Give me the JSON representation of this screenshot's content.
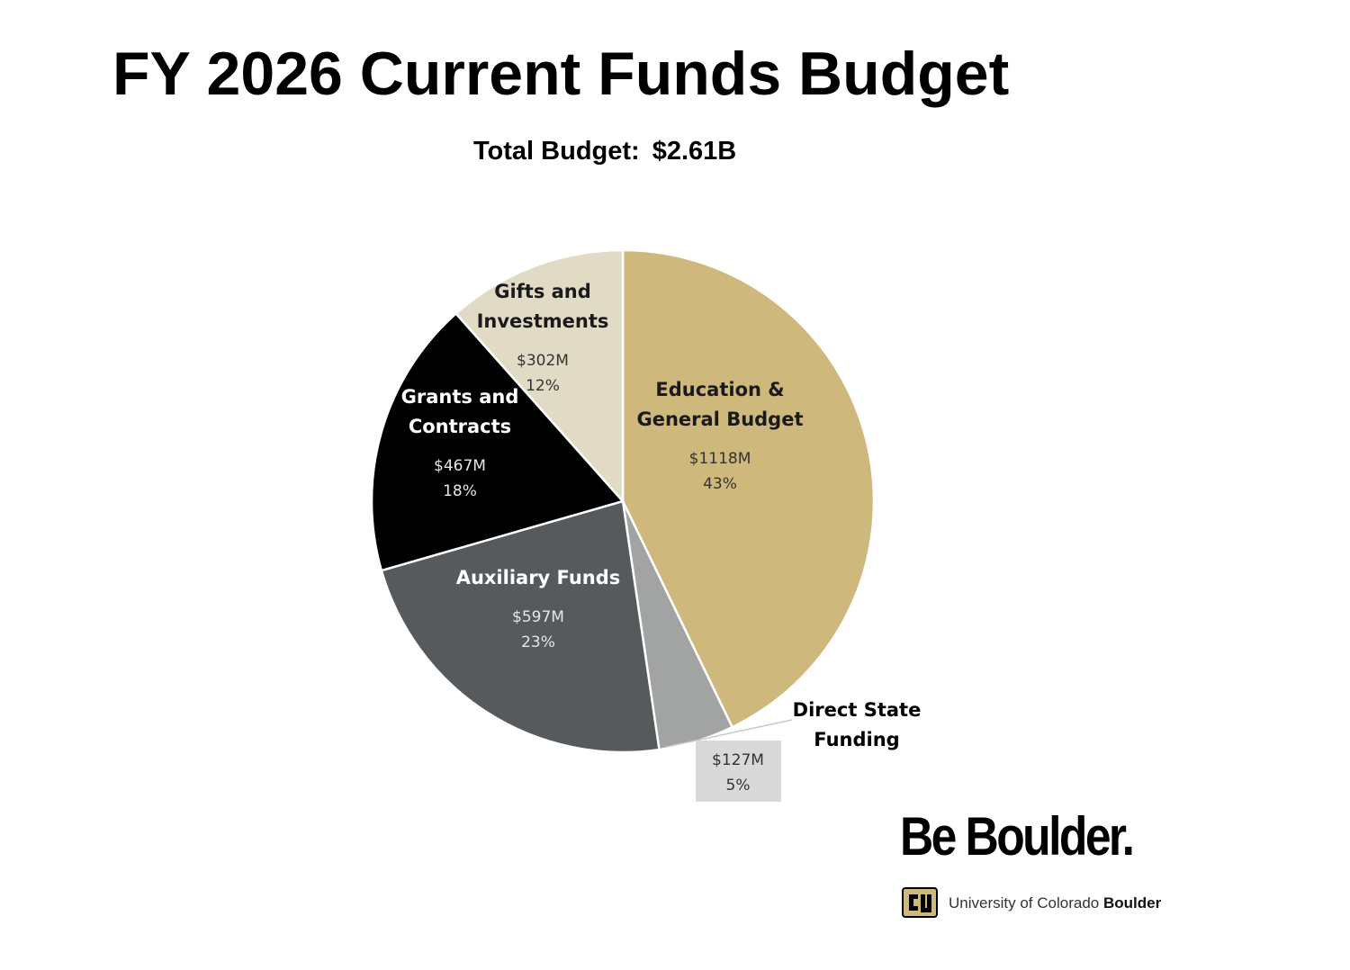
{
  "page": {
    "title": "FY 2026 Current Funds Budget",
    "subtitle_label": "Total Budget:",
    "subtitle_value": "$2.61B"
  },
  "chart_data": {
    "type": "pie",
    "title": "FY 2026 Current Funds Budget",
    "subtitle": "Total Budget: $2.61B",
    "start_angle_deg": 0,
    "direction": "clockwise",
    "slices": [
      {
        "label": "Education & General Budget",
        "label_lines": [
          "Education &",
          "General Budget"
        ],
        "amount": "$1118M",
        "percent": "43%",
        "value": 1118,
        "color": "#cfb87c",
        "label_color": "#1a1a1a",
        "value_color": "#333333"
      },
      {
        "label": "Direct State Funding",
        "label_lines": [
          "Direct State",
          "Funding"
        ],
        "amount": "$127M",
        "percent": "5%",
        "value": 127,
        "color": "#a2a4a3",
        "label_color": "#000000",
        "value_color": "#333333",
        "callout": true
      },
      {
        "label": "Auxiliary Funds",
        "label_lines": [
          "Auxiliary Funds"
        ],
        "amount": "$597M",
        "percent": "23%",
        "value": 597,
        "color": "#565a5c",
        "label_color": "#ffffff",
        "value_color": "#e6e6e6"
      },
      {
        "label": "Grants and Contracts",
        "label_lines": [
          "Grants and",
          "Contracts"
        ],
        "amount": "$467M",
        "percent": "18%",
        "value": 467,
        "color": "#000000",
        "label_color": "#ffffff",
        "value_color": "#e6e6e6"
      },
      {
        "label": "Gifts and Investments",
        "label_lines": [
          "Gifts and",
          "Investments"
        ],
        "amount": "$302M",
        "percent": "12%",
        "value": 302,
        "color": "#e1dbc6",
        "label_color": "#1a1a1a",
        "value_color": "#333333"
      }
    ],
    "legend": "none"
  },
  "logo": {
    "tagline": "Be Boulder.",
    "name_regular": "University of Colorado ",
    "name_bold": "Boulder",
    "gold": "#cfb87c"
  }
}
